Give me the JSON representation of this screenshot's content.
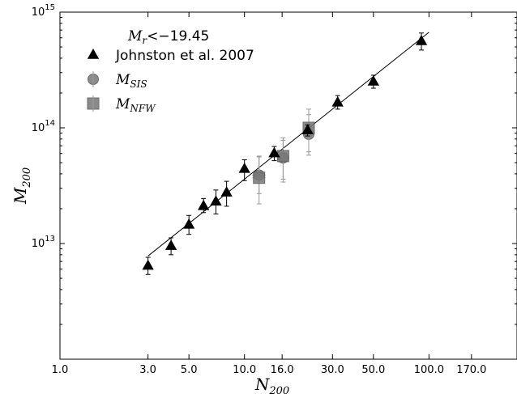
{
  "chart_data": {
    "type": "scatter",
    "xscale": "log",
    "yscale": "log",
    "xlim": [
      1.0,
      300.0
    ],
    "ylim": [
      1000000000000.0,
      1000000000000000.0
    ],
    "xticks": [
      1.0,
      3.0,
      5.0,
      10.0,
      16.0,
      30.0,
      50.0,
      100.0,
      170.0
    ],
    "xtick_labels": [
      "1.0",
      "3.0",
      "5.0",
      "10.0",
      "16.0",
      "30.0",
      "50.0",
      "100.0",
      "170.0"
    ],
    "yticks": [
      10000000000000.0,
      100000000000000.0,
      1000000000000000.0
    ],
    "ytick_labels": [
      {
        "base": "10",
        "exp": "13"
      },
      {
        "base": "10",
        "exp": "14"
      },
      {
        "base": "10",
        "exp": "15"
      }
    ],
    "xlabel": {
      "main": "N",
      "sub": "200"
    },
    "ylabel": {
      "main": "M",
      "sub": "200"
    },
    "grid": false,
    "legend_location": "upper left",
    "legend_title": {
      "main": "M",
      "sub": "r",
      "rest": "<−19.45"
    },
    "series": [
      {
        "name": "Johnston et al. 2007",
        "marker": "triangle",
        "color": "#000000",
        "points": [
          {
            "x": 3,
            "y": 6400000000000.0,
            "ylo": 5400000000000.0,
            "yhi": 7600000000000.0
          },
          {
            "x": 4,
            "y": 9500000000000.0,
            "ylo": 8000000000000.0,
            "yhi": 11200000000000.0
          },
          {
            "x": 5,
            "y": 14500000000000.0,
            "ylo": 12000000000000.0,
            "yhi": 17500000000000.0
          },
          {
            "x": 6,
            "y": 21000000000000.0,
            "ylo": 18500000000000.0,
            "yhi": 24500000000000.0
          },
          {
            "x": 7,
            "y": 23000000000000.0,
            "ylo": 18000000000000.0,
            "yhi": 29000000000000.0
          },
          {
            "x": 8,
            "y": 27500000000000.0,
            "ylo": 21000000000000.0,
            "yhi": 34500000000000.0
          },
          {
            "x": 10,
            "y": 44000000000000.0,
            "ylo": 35000000000000.0,
            "yhi": 53000000000000.0
          },
          {
            "x": 14.5,
            "y": 60000000000000.0,
            "ylo": 52000000000000.0,
            "yhi": 69000000000000.0
          },
          {
            "x": 22,
            "y": 95000000000000.0,
            "ylo": 85000000000000.0,
            "yhi": 106000000000000.0
          },
          {
            "x": 32,
            "y": 165000000000000.0,
            "ylo": 145000000000000.0,
            "yhi": 190000000000000.0
          },
          {
            "x": 50,
            "y": 250000000000000.0,
            "ylo": 220000000000000.0,
            "yhi": 285000000000000.0
          },
          {
            "x": 91,
            "y": 560000000000000.0,
            "ylo": 470000000000000.0,
            "yhi": 660000000000000.0
          }
        ]
      },
      {
        "name": {
          "main": "M",
          "sub": "SIS"
        },
        "marker": "circle",
        "color": "#777777",
        "points": [
          {
            "x": 12,
            "y": 39000000000000.0,
            "ylo": 27000000000000.0,
            "yhi": 56000000000000.0,
            "xlo": 11,
            "xhi": 13
          },
          {
            "x": 16.2,
            "y": 55000000000000.0,
            "ylo": 36000000000000.0,
            "yhi": 78000000000000.0,
            "xlo": 15,
            "xhi": 17.5
          },
          {
            "x": 22.3,
            "y": 88000000000000.0,
            "ylo": 58000000000000.0,
            "yhi": 130000000000000.0,
            "xlo": 21,
            "xhi": 24
          }
        ]
      },
      {
        "name": {
          "main": "M",
          "sub": "NFW"
        },
        "marker": "square",
        "color": "#777777",
        "points": [
          {
            "x": 12,
            "y": 37000000000000.0,
            "ylo": 22000000000000.0,
            "yhi": 57000000000000.0,
            "xlo": 11,
            "xhi": 13
          },
          {
            "x": 16.2,
            "y": 57000000000000.0,
            "ylo": 34000000000000.0,
            "yhi": 82000000000000.0,
            "xlo": 15,
            "xhi": 17.5
          },
          {
            "x": 22.3,
            "y": 100000000000000.0,
            "ylo": 62000000000000.0,
            "yhi": 145000000000000.0,
            "xlo": 21,
            "xhi": 24
          }
        ]
      }
    ],
    "fit_line": {
      "x": [
        3,
        100
      ],
      "y": [
        7800000000000.0,
        670000000000000.0
      ],
      "color": "#000000"
    }
  }
}
